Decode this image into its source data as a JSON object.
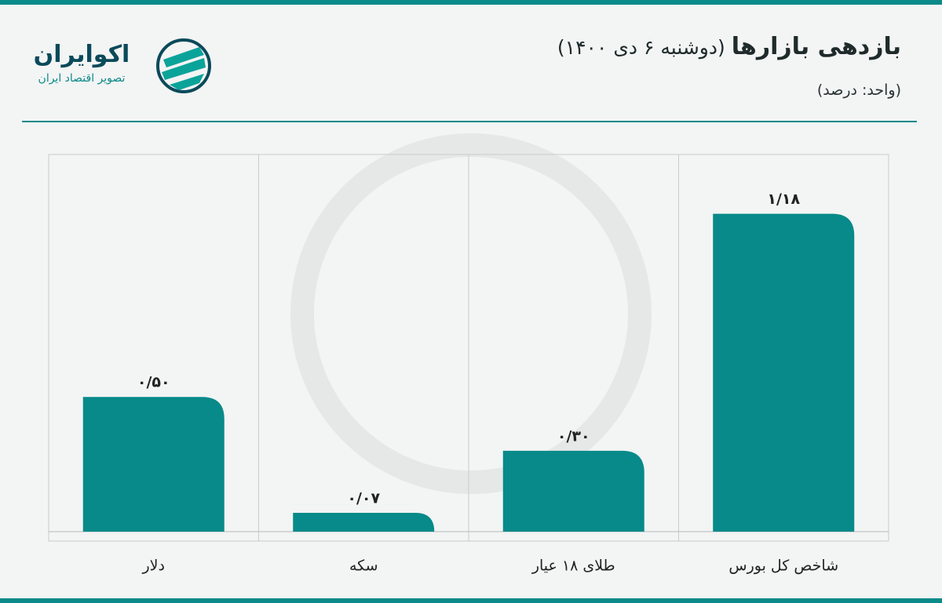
{
  "brand": {
    "name": "اکوایران",
    "tagline": "تصویر اقتصاد ایران"
  },
  "chart_data": {
    "type": "bar",
    "title": "بازدهی بازارها",
    "subtitle": "(دوشنبه ۶ دی ۱۴۰۰)",
    "unit": "(واحد: درصد)",
    "categories": [
      "دلار",
      "سکه",
      "طلای ۱۸ عیار",
      "شاخص کل بورس"
    ],
    "values": [
      0.5,
      0.07,
      0.3,
      1.18
    ],
    "value_labels": [
      "۰/۵۰",
      "۰/۰۷",
      "۰/۳۰",
      "۱/۱۸"
    ],
    "color": "#078a89",
    "ylim": [
      0,
      1.4
    ]
  }
}
